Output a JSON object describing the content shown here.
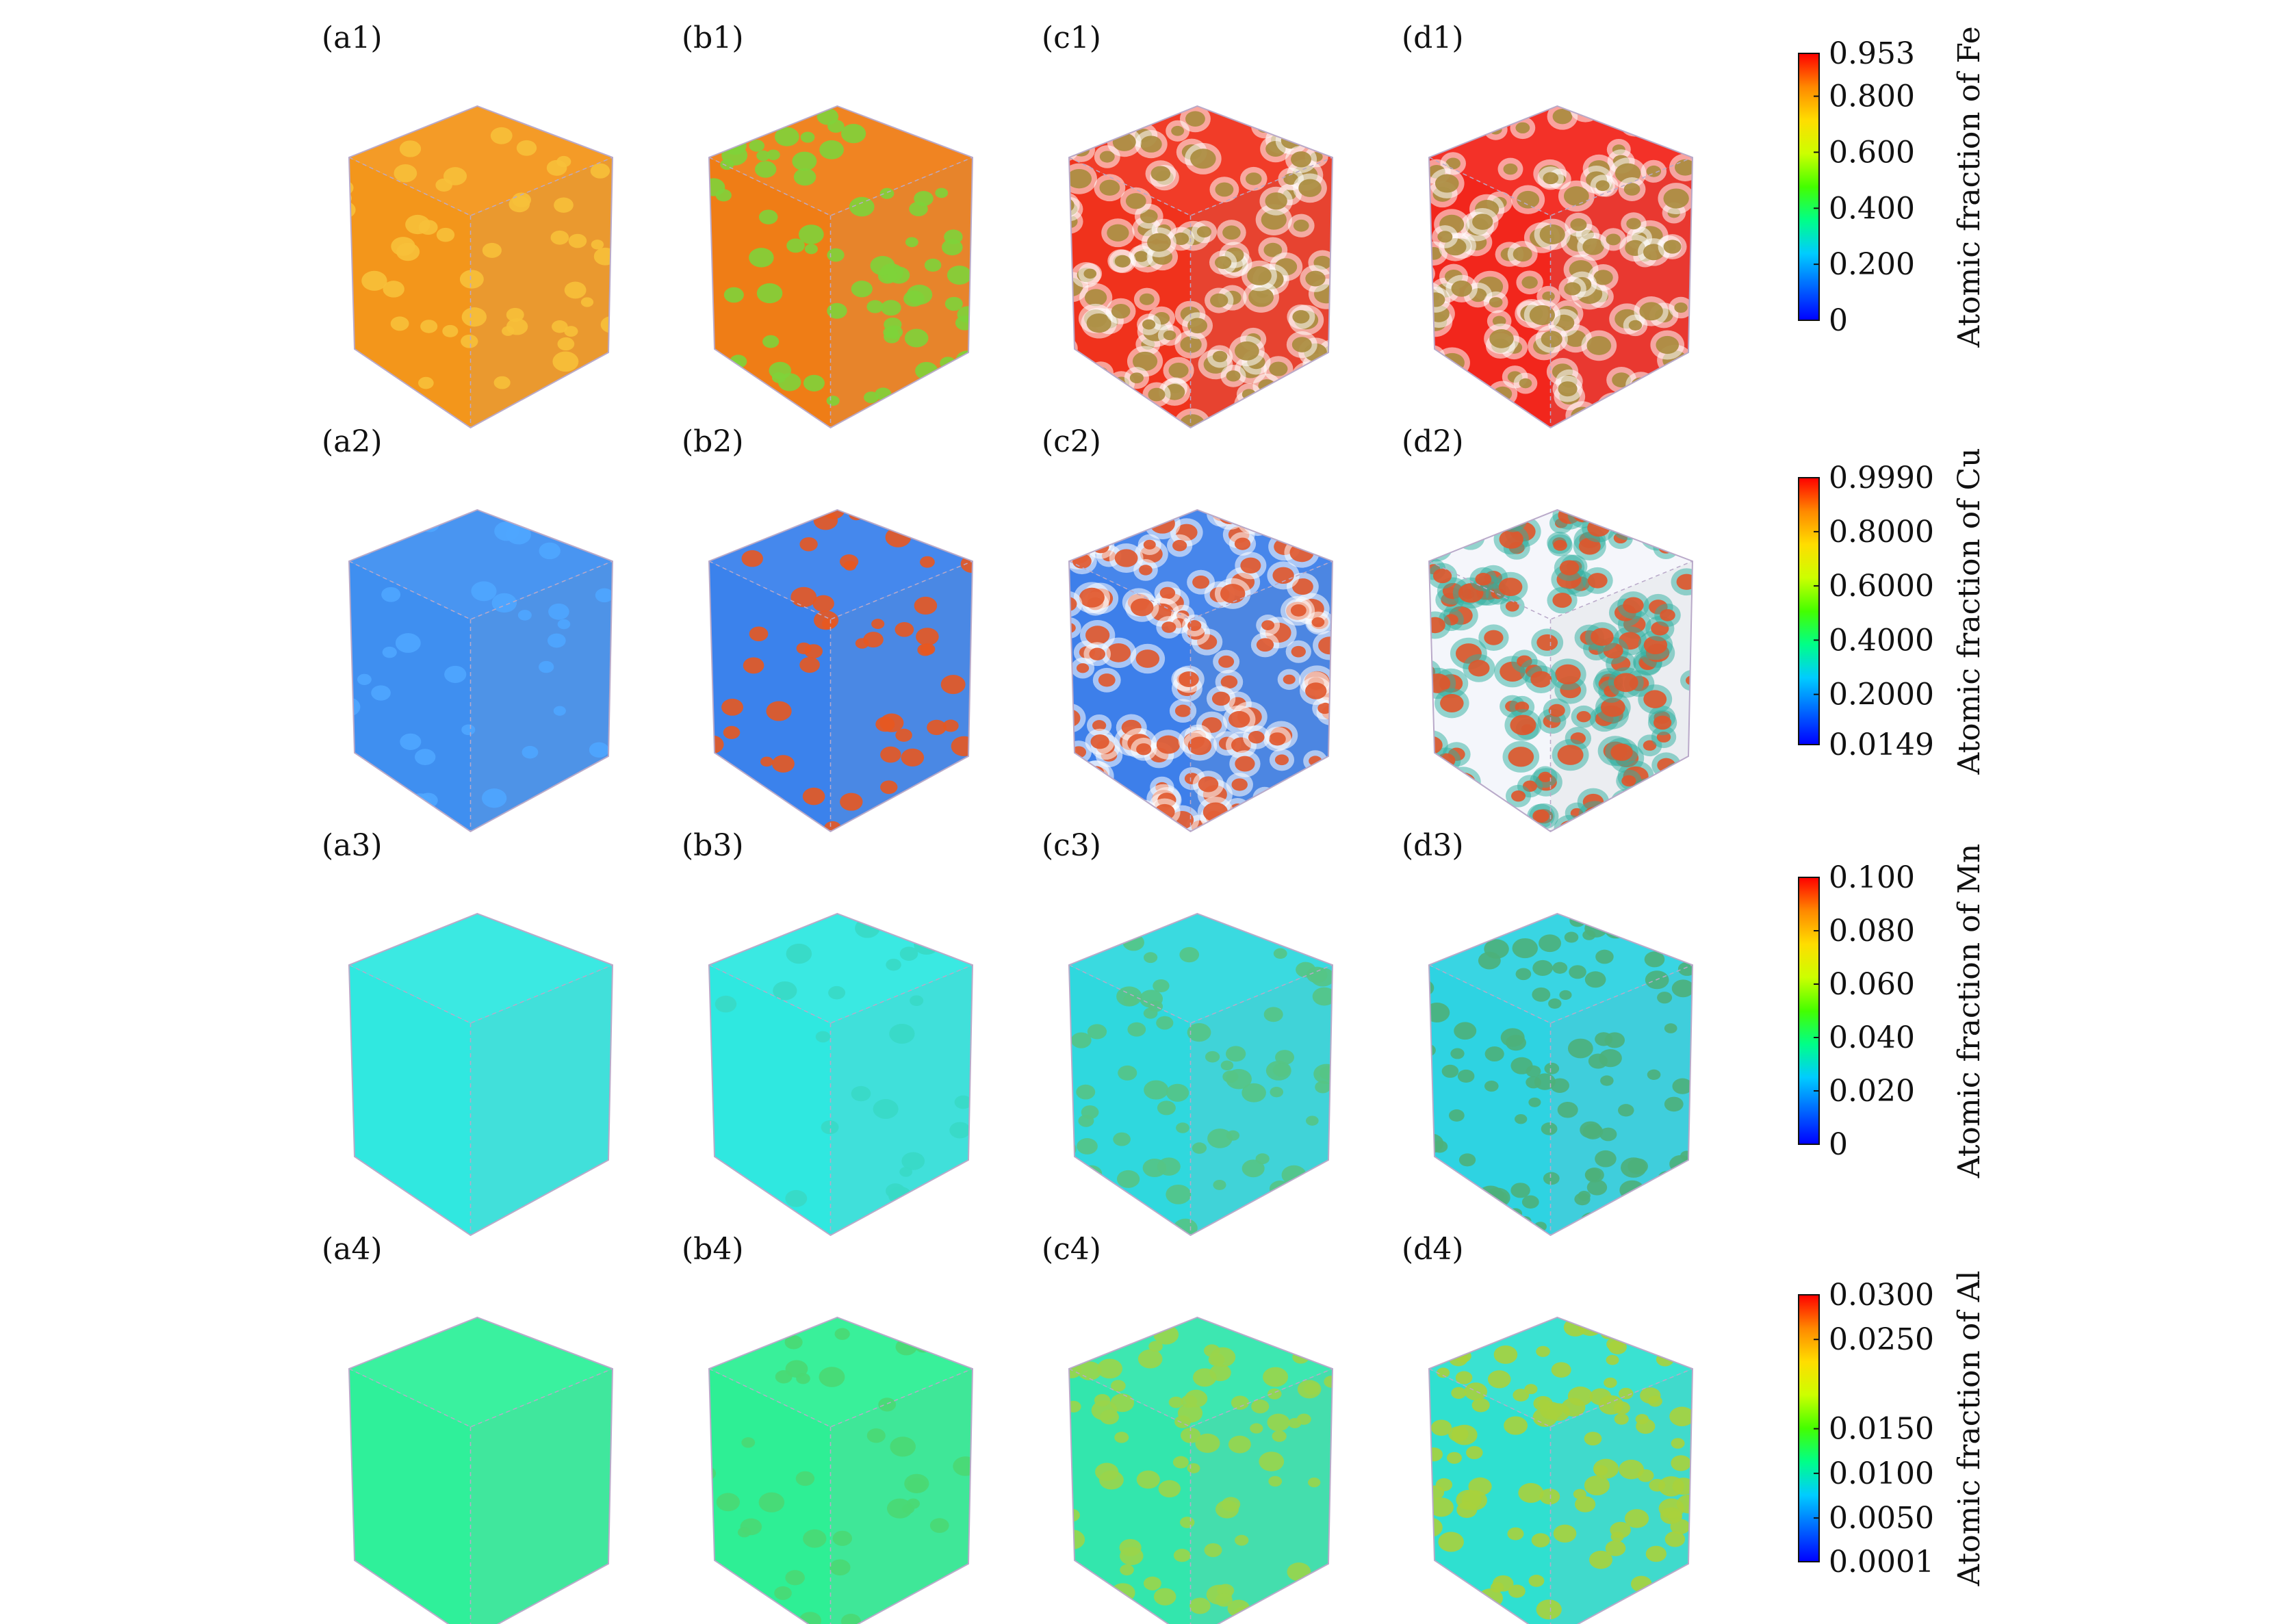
{
  "panel_labels": [
    [
      "(a1)",
      "(b1)",
      "(c1)",
      "(d1)"
    ],
    [
      "(a2)",
      "(b2)",
      "(c2)",
      "(d2)"
    ],
    [
      "(a3)",
      "(b3)",
      "(c3)",
      "(d3)"
    ],
    [
      "(a4)",
      "(b4)",
      "(c4)",
      "(d4)"
    ]
  ],
  "colorbars": [
    {
      "title": "Atomic fraction of Fe",
      "ticks": [
        "0.953",
        "0.800",
        "0.600",
        "0.400",
        "0.200",
        "0"
      ],
      "tick_values": [
        0.953,
        0.8,
        0.6,
        0.4,
        0.2,
        0
      ],
      "range": [
        0,
        0.953
      ]
    },
    {
      "title": "Atomic fraction of Cu",
      "ticks": [
        "0.9990",
        "0.8000",
        "0.6000",
        "0.4000",
        "0.2000",
        "0.0149"
      ],
      "tick_values": [
        0.999,
        0.8,
        0.6,
        0.4,
        0.2,
        0.0149
      ],
      "range": [
        0.0149,
        0.999
      ]
    },
    {
      "title": "Atomic fraction of Mn",
      "ticks": [
        "0.100",
        "0.080",
        "0.060",
        "0.040",
        "0.020",
        "0"
      ],
      "tick_values": [
        0.1,
        0.08,
        0.06,
        0.04,
        0.02,
        0
      ],
      "range": [
        0,
        0.1
      ]
    },
    {
      "title": "Atomic fraction of Al",
      "ticks": [
        "0.0300",
        "0.0250",
        "0.0150",
        "0.0100",
        "0.0050",
        "0.0001"
      ],
      "tick_values": [
        0.03,
        0.025,
        0.015,
        0.01,
        0.005,
        0.0001
      ],
      "range": [
        0.0001,
        0.03
      ]
    }
  ],
  "colormap": [
    "#0000ff",
    "#0066ff",
    "#00ccff",
    "#00ff88",
    "#44ff00",
    "#ccff00",
    "#ffdd00",
    "#ff8800",
    "#ff0000"
  ],
  "cubes": [
    [
      {
        "base": "#f3961b",
        "dot": "#f7c03a",
        "density": 0.35,
        "halo": ""
      },
      {
        "base": "#ef7d16",
        "dot": "#7ed33a",
        "density": 0.55,
        "halo": ""
      },
      {
        "base": "#f0321c",
        "dot": "#a98b3c",
        "density": 0.9,
        "halo": "#ffffff"
      },
      {
        "base": "#f2261c",
        "dot": "#a98b3c",
        "density": 0.85,
        "halo": "#ffffff"
      }
    ],
    [
      {
        "base": "#3f8ff0",
        "dot": "#4fa6ff",
        "density": 0.25,
        "halo": ""
      },
      {
        "base": "#3b82ec",
        "dot": "#e8581f",
        "density": 0.45,
        "halo": ""
      },
      {
        "base": "#3d7fea",
        "dot": "#e0552a",
        "density": 1.0,
        "halo": "#ffffff"
      },
      {
        "base": "#f4f6fb",
        "dot": "#e0552a",
        "density": 1.0,
        "halo": "#2fb0a0"
      }
    ],
    [
      {
        "base": "#30e8e0",
        "dot": "#30e8e0",
        "density": 0.0,
        "halo": ""
      },
      {
        "base": "#2fe8e0",
        "dot": "#39d9c5",
        "density": 0.2,
        "halo": ""
      },
      {
        "base": "#2fd8de",
        "dot": "#55c485",
        "density": 0.55,
        "halo": ""
      },
      {
        "base": "#2ed3e2",
        "dot": "#4db07a",
        "density": 0.75,
        "halo": ""
      }
    ],
    [
      {
        "base": "#2ff09a",
        "dot": "#2ff09a",
        "density": 0.0,
        "halo": ""
      },
      {
        "base": "#2eef95",
        "dot": "#4ad873",
        "density": 0.25,
        "halo": ""
      },
      {
        "base": "#33e6ad",
        "dot": "#9ad54a",
        "density": 0.6,
        "halo": ""
      },
      {
        "base": "#2fe0d0",
        "dot": "#a8d23c",
        "density": 0.8,
        "halo": ""
      }
    ]
  ]
}
